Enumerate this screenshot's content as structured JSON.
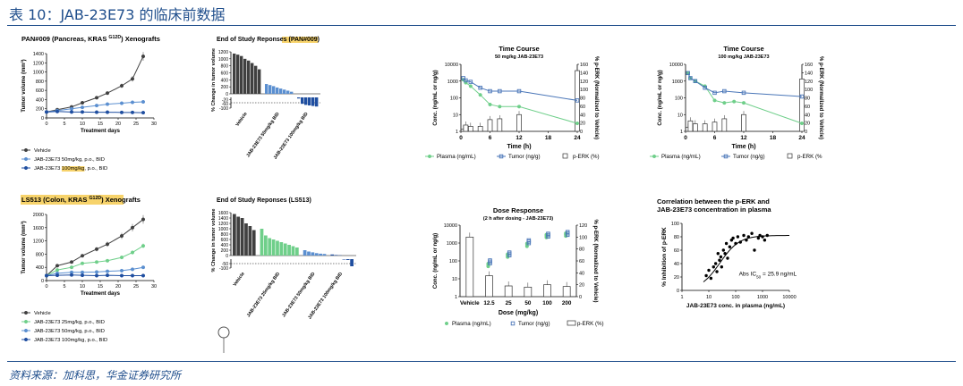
{
  "header": {
    "title": "表 10：JAB-23E73 的临床前数据"
  },
  "footer": {
    "source": "资料来源：加科思，华金证券研究所"
  },
  "chart_data": [
    {
      "id": "pan_xeno",
      "type": "line",
      "title": "PAN#009 (Pancreas, KRAS G12D) Xenografts",
      "title_main": "PAN#009 (Pancreas, KRAS ",
      "title_sup": "G12D",
      "title_end": ") Xenografts",
      "xlabel": "Treatment days",
      "ylabel": "Tumor volume (mm³)",
      "xlim": [
        0,
        30
      ],
      "ylim": [
        0,
        1400
      ],
      "xticks": [
        "0",
        "5",
        "10",
        "15",
        "20",
        "25",
        "30"
      ],
      "yticks": [
        "0",
        "200",
        "400",
        "600",
        "800",
        "1000",
        "1200",
        "1400"
      ],
      "series": [
        {
          "name": "Vehicle",
          "color": "#404040",
          "x": [
            0,
            3,
            7,
            10,
            14,
            17,
            21,
            24,
            27
          ],
          "y": [
            130,
            180,
            240,
            330,
            440,
            540,
            700,
            850,
            1340
          ]
        },
        {
          "name": "JAB-23E73 50mg/kg, p.o., BID",
          "color": "#5b8fd0",
          "x": [
            0,
            3,
            7,
            10,
            14,
            17,
            21,
            24,
            27
          ],
          "y": [
            130,
            160,
            200,
            230,
            270,
            300,
            320,
            340,
            350
          ]
        },
        {
          "name": "JAB-23E73 100mg/kg, p.o., BID",
          "color": "#1f4ea0",
          "x": [
            0,
            3,
            7,
            10,
            14,
            17,
            21,
            24,
            27
          ],
          "y": [
            130,
            140,
            130,
            130,
            125,
            125,
            120,
            120,
            115
          ]
        }
      ],
      "legend": [
        "Vehicle",
        "JAB-23E73 50mg/kg, p.o., BID",
        "JAB-23E73 100mg/kg, p.o., BID"
      ],
      "legend_highlight": "100mg/kg"
    },
    {
      "id": "pan_waterfall",
      "type": "bar",
      "title": "End of Study Reponses (PAN#009)",
      "ylabel": "% Change in tumor volume",
      "ylim": [
        -100,
        1200
      ],
      "yticks": [
        "1200",
        "1000",
        "800",
        "600",
        "400",
        "200",
        "0",
        "-20",
        "-60",
        "-100"
      ],
      "groups": [
        {
          "name": "Vehicle",
          "color": "#404040",
          "values": [
            1150,
            1120,
            1080,
            1000,
            950,
            880,
            800,
            700
          ]
        },
        {
          "name": "JAB-23E73 50mg/kg BID",
          "color": "#5b8fd0",
          "values": [
            280,
            250,
            220,
            180,
            150,
            120,
            90,
            60
          ]
        },
        {
          "name": "JAB-23E73 100mg/kg BID",
          "color": "#1f4ea0",
          "values": [
            -10,
            -60,
            -70,
            -75,
            -80,
            -85
          ]
        }
      ],
      "xlabels": [
        "Vehicle",
        "JAB-23E73 50mg/kg BID",
        "JAB-23E73 100mg/kg BID"
      ]
    },
    {
      "id": "time_course_50",
      "type": "line",
      "title": "Time Course",
      "subtitle": "50 mg/kg JAB-23E73",
      "xlabel": "Time (h)",
      "ylabel": "Conc. (ng/mL or ng/g)",
      "y2label": "% p-ERK (Normalized to Vehicle)",
      "xticks": [
        "0",
        "6",
        "12",
        "18",
        "24"
      ],
      "yticks": [
        "1",
        "10",
        "100",
        "1000",
        "10000"
      ],
      "y2ticks": [
        "0",
        "20",
        "40",
        "60",
        "80",
        "100",
        "120",
        "140",
        "160"
      ],
      "series": [
        {
          "name": "Plasma (ng/mL)",
          "color": "#6fcf8a",
          "x": [
            0.5,
            1,
            2,
            4,
            6,
            8,
            12,
            24
          ],
          "y": [
            1200,
            800,
            500,
            150,
            40,
            30,
            30,
            3
          ]
        },
        {
          "name": "Tumor (ng/g)",
          "color": "#4a76b8",
          "x": [
            0.5,
            1,
            2,
            4,
            6,
            8,
            12,
            24
          ],
          "y": [
            1500,
            1100,
            900,
            400,
            250,
            250,
            250,
            70
          ]
        },
        {
          "name": "p-ERK (%)",
          "color": "#888888",
          "x": [
            0.5,
            1,
            2,
            4,
            6,
            8,
            12,
            24
          ],
          "y": [
            5,
            15,
            12,
            12,
            28,
            30,
            40,
            145
          ]
        }
      ],
      "legend": [
        "Plasma (ng/mL)",
        "Tumor (ng/g)",
        "p-ERK (%)"
      ]
    },
    {
      "id": "time_course_100",
      "type": "line",
      "title": "Time Course",
      "subtitle": "100 mg/kg JAB-23E73",
      "xlabel": "Time (h)",
      "ylabel": "Conc. (ng/mL or ng/g)",
      "y2label": "% p-ERK (Normalized to Vehicle)",
      "xticks": [
        "0",
        "6",
        "12",
        "18",
        "24"
      ],
      "yticks": [
        "1",
        "10",
        "100",
        "1000",
        "10000"
      ],
      "y2ticks": [
        "0",
        "20",
        "40",
        "60",
        "80",
        "100",
        "120",
        "140",
        "160"
      ],
      "series": [
        {
          "name": "Plasma (ng/mL)",
          "color": "#6fcf8a",
          "x": [
            0.5,
            1,
            2,
            4,
            6,
            8,
            10,
            12,
            24
          ],
          "y": [
            3000,
            1500,
            1000,
            500,
            70,
            50,
            60,
            50,
            3
          ]
        },
        {
          "name": "Tumor (ng/g)",
          "color": "#4a76b8",
          "x": [
            0.5,
            1,
            2,
            4,
            6,
            8,
            12,
            24
          ],
          "y": [
            3000,
            1500,
            1000,
            400,
            200,
            250,
            200,
            120
          ]
        },
        {
          "name": "p-ERK (%)",
          "color": "#888888",
          "x": [
            0.5,
            1,
            2,
            4,
            6,
            8,
            12,
            24
          ],
          "y": [
            10,
            25,
            18,
            18,
            22,
            30,
            40,
            125
          ]
        }
      ],
      "legend": [
        "Plasma (ng/mL)",
        "Tumor (ng/g)",
        "p-ERK (%"
      ]
    },
    {
      "id": "ls513_xeno",
      "type": "line",
      "title": "LS513 (Colon, KRAS G12D) Xenografts",
      "title_main": "LS513 (Colon, KRAS ",
      "title_sup": "G12D",
      "title_end": ") Xenografts",
      "xlabel": "Treatment days",
      "ylabel": "Tumor volume (mm³)",
      "xlim": [
        0,
        30
      ],
      "ylim": [
        0,
        2000
      ],
      "xticks": [
        "0",
        "5",
        "10",
        "15",
        "20",
        "25",
        "30"
      ],
      "yticks": [
        "0",
        "400",
        "800",
        "1200",
        "1600",
        "2000"
      ],
      "series": [
        {
          "name": "Vehicle",
          "color": "#404040",
          "x": [
            0,
            3,
            7,
            10,
            14,
            17,
            21,
            24,
            27
          ],
          "y": [
            150,
            450,
            560,
            750,
            950,
            1100,
            1350,
            1600,
            1850
          ]
        },
        {
          "name": "JAB-23E73 25mg/kg, p.o., BID",
          "color": "#6fcf8a",
          "x": [
            0,
            3,
            7,
            10,
            14,
            17,
            21,
            24,
            27
          ],
          "y": [
            150,
            320,
            400,
            520,
            560,
            600,
            700,
            850,
            1050
          ]
        },
        {
          "name": "JAB-23E73 50mg/kg, p.o., BID",
          "color": "#5b8fd0",
          "x": [
            0,
            3,
            7,
            10,
            14,
            17,
            21,
            24,
            27
          ],
          "y": [
            150,
            220,
            250,
            250,
            260,
            280,
            300,
            340,
            400
          ]
        },
        {
          "name": "JAB-23E73 100mg/kg, p.o., BID",
          "color": "#1f4ea0",
          "x": [
            0,
            3,
            7,
            10,
            14,
            17,
            21,
            24,
            27
          ],
          "y": [
            150,
            160,
            170,
            160,
            150,
            160,
            150,
            150,
            150
          ]
        }
      ],
      "legend": [
        "Vehicle",
        "JAB-23E73 25mg/kg, p.o., BID",
        "JAB-23E73 50mg/kg, p.o., BID",
        "JAB-23E73 100mg/kg, p.o., BID"
      ]
    },
    {
      "id": "ls513_waterfall",
      "type": "bar",
      "title": "End of Study Reponses (LS513)",
      "ylabel": "% Change in tumor volume",
      "ylim": [
        -100,
        1600
      ],
      "yticks": [
        "1600",
        "1400",
        "1200",
        "1000",
        "800",
        "600",
        "400",
        "200",
        "0",
        "-50",
        "-100"
      ],
      "groups": [
        {
          "name": "Vehicle",
          "color": "#404040",
          "values": [
            1550,
            1450,
            1400,
            1200,
            1100,
            950
          ]
        },
        {
          "name": "JAB-23E73 25mg/kg BID",
          "color": "#6fcf8a",
          "values": [
            1000,
            750,
            650,
            600,
            550,
            500,
            450,
            400,
            350,
            300
          ]
        },
        {
          "name": "JAB-23E73 50mg/kg BID",
          "color": "#5b8fd0",
          "values": [
            200,
            150,
            120,
            90,
            70,
            60
          ]
        },
        {
          "name": "JAB-23E73 100mg/kg BID",
          "color": "#1f4ea0",
          "values": [
            40,
            20,
            10,
            -5,
            -10,
            -80
          ]
        }
      ],
      "xlabels": [
        "Vehicle",
        "JAB-23E73 25mg/kg BID",
        "JAB-23E73 50mg/kg BID",
        "JAB-23E73 100mg/kg BID"
      ]
    },
    {
      "id": "dose_response",
      "type": "bar",
      "title": "Dose Response",
      "subtitle": "(2 h after dosing - JAB-23E73)",
      "xlabel": "Dose (mg/kg)",
      "ylabel": "Conc. (ng/mL or ng/g)",
      "y2label": "% p-ERK (Normalized to Vehicle)",
      "categories": [
        "Vehicle",
        "12.5",
        "25",
        "50",
        "100",
        "200"
      ],
      "yticks": [
        "1",
        "10",
        "100",
        "1000",
        "10000"
      ],
      "y2ticks": [
        "0",
        "20",
        "40",
        "60",
        "80",
        "100",
        "120"
      ],
      "series": [
        {
          "name": "Plasma (ng/mL)",
          "color": "#6fcf8a",
          "values": [
            null,
            60,
            200,
            800,
            2500,
            3000
          ]
        },
        {
          "name": "Tumor (ng/g)",
          "color": "#4a76b8",
          "values": [
            null,
            90,
            250,
            1200,
            2800,
            3500
          ]
        },
        {
          "name": "p-ERK (%)",
          "color": "#888888",
          "values": [
            100,
            35,
            18,
            16,
            20,
            17
          ]
        }
      ],
      "legend": [
        "Plasma (ng/mL)",
        "Tumor (ng/g)",
        "p-ERK (%)"
      ]
    },
    {
      "id": "correlation",
      "type": "scatter",
      "title": "Correlation between the p-ERK and JAB-23E73 concentration in plasma",
      "title_l1": "Correlation between the p-ERK and",
      "title_l2": "JAB-23E73 concentration in plasma",
      "xlabel": "JAB-23E73 conc. in plasma (ng/mL)",
      "ylabel": "% Inhibition of p-ERK",
      "annotation": "Abs IC50 = 25.9 ng/mL",
      "ann_main": "Abs IC",
      "ann_sub": "50",
      "ann_end": " = 25.9 ng/mL",
      "xticks": [
        "1",
        "10",
        "100",
        "1000",
        "10000"
      ],
      "yticks": [
        "0",
        "20",
        "40",
        "60",
        "80",
        "100"
      ],
      "points": {
        "x": [
          8,
          10,
          12,
          15,
          18,
          20,
          22,
          25,
          28,
          30,
          35,
          40,
          45,
          50,
          60,
          70,
          80,
          100,
          120,
          150,
          200,
          250,
          300,
          400,
          500,
          700,
          800,
          1000,
          1200,
          1500
        ],
        "y": [
          22,
          30,
          18,
          35,
          40,
          28,
          55,
          45,
          50,
          35,
          60,
          55,
          70,
          48,
          65,
          75,
          78,
          70,
          80,
          72,
          82,
          75,
          80,
          85,
          60,
          78,
          82,
          80,
          75,
          82
        ]
      }
    }
  ]
}
